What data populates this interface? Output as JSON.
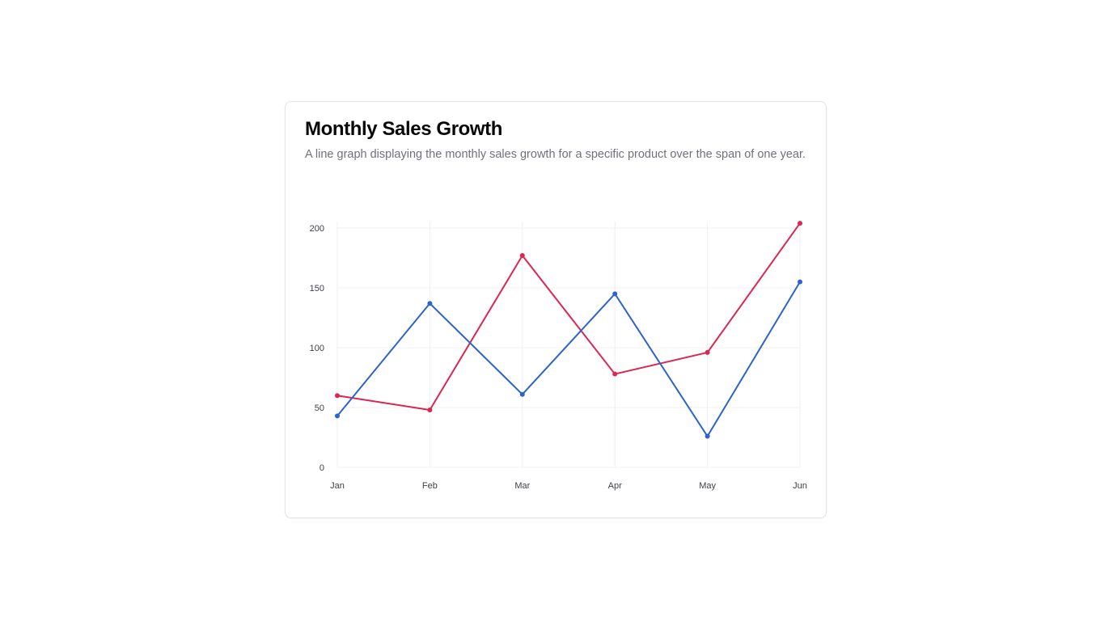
{
  "card": {
    "title": "Monthly Sales Growth",
    "description": "A line graph displaying the monthly sales growth for a specific product over the span of one year."
  },
  "chart_data": {
    "type": "line",
    "title": "Monthly Sales Growth",
    "xlabel": "",
    "ylabel": "",
    "categories": [
      "Jan",
      "Feb",
      "Mar",
      "Apr",
      "May",
      "Jun"
    ],
    "ylim": [
      0,
      200
    ],
    "yticks": [
      0,
      50,
      100,
      150,
      200
    ],
    "grid": true,
    "legend": "none",
    "series": [
      {
        "color": "#dc2650",
        "values": [
          60,
          48,
          177,
          78,
          96,
          204
        ]
      },
      {
        "color": "#2d63cc",
        "values": [
          43,
          137,
          61,
          145,
          26,
          155
        ]
      }
    ]
  }
}
